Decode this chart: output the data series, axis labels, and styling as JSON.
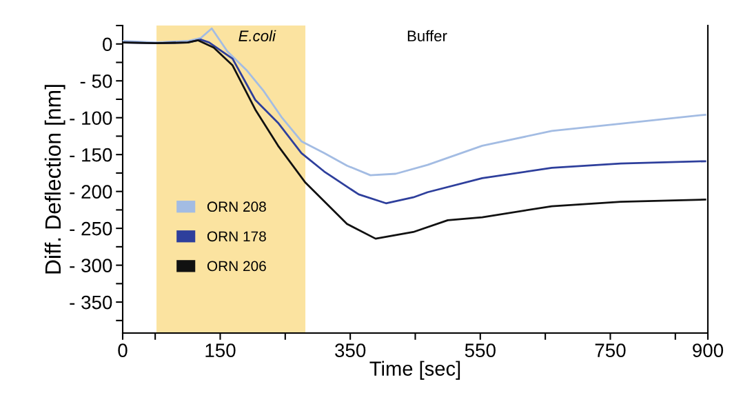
{
  "chart_data": {
    "type": "line",
    "xlabel": "Time [sec]",
    "ylabel": "Diff. Deflection [nm]",
    "xlim": [
      0,
      900
    ],
    "ylim": [
      -392,
      25
    ],
    "xticks": [
      0,
      {
        "value": 50,
        "label": null
      },
      150,
      {
        "value": 250,
        "label": null
      },
      350,
      {
        "value": 450,
        "label": null
      },
      550,
      {
        "value": 650,
        "label": null
      },
      750,
      {
        "value": 850,
        "label": null
      },
      900
    ],
    "yticks": [
      {
        "value": 25,
        "label": null
      },
      0,
      {
        "value": -25,
        "label": null
      },
      {
        "value": -50,
        "label": "- 50"
      },
      {
        "value": -75,
        "label": null
      },
      {
        "value": -100,
        "label": "- 100"
      },
      {
        "value": -125,
        "label": null
      },
      {
        "value": -150,
        "label": "- 150"
      },
      {
        "value": -175,
        "label": null
      },
      {
        "value": -200,
        "label": "- 200"
      },
      {
        "value": -225,
        "label": null
      },
      {
        "value": -250,
        "label": "- 250"
      },
      {
        "value": -275,
        "label": null
      },
      {
        "value": -300,
        "label": "- 300"
      },
      {
        "value": -325,
        "label": null
      },
      {
        "value": -350,
        "label": "- 350"
      },
      {
        "value": -375,
        "label": null
      }
    ],
    "grid": false,
    "legend": "bottom left",
    "marker": "none",
    "line_style": "solid",
    "bands": [
      {
        "axis": "x",
        "from": 52,
        "to": 281,
        "label": "E.coli",
        "color": "#fbe3a0"
      }
    ],
    "annotations": [
      "Buffer"
    ],
    "series": [
      {
        "name": "ORN 208",
        "color": "#a3bce3",
        "x": [
          0,
          50,
          100,
          120,
          137,
          161,
          190,
          217,
          245,
          275,
          310,
          345,
          381,
          420,
          469,
          553,
          660,
          766,
          896
        ],
        "values": [
          4,
          2,
          4,
          8,
          21,
          -10,
          -35,
          -64,
          -100,
          -132,
          -148,
          -165,
          -178,
          -176,
          -164,
          -138,
          -118,
          -108,
          -96
        ]
      },
      {
        "name": "ORN 178",
        "color": "#2e3f9c",
        "x": [
          0,
          50,
          100,
          120,
          133,
          169,
          204,
          239,
          275,
          310,
          363,
          405,
          447,
          469,
          553,
          660,
          766,
          896
        ],
        "values": [
          2,
          1,
          2,
          6,
          2,
          -20,
          -76,
          -107,
          -148,
          -173,
          -204,
          -216,
          -208,
          -201,
          -182,
          -168,
          -162,
          -159
        ]
      },
      {
        "name": "ORN 206",
        "color": "#111111",
        "x": [
          0,
          50,
          100,
          116,
          140,
          169,
          204,
          239,
          281,
          345,
          389,
          447,
          500,
          553,
          660,
          766,
          896
        ],
        "values": [
          2,
          1,
          2,
          5,
          -5,
          -29,
          -89,
          -138,
          -188,
          -244,
          -264,
          -255,
          -239,
          -235,
          -220,
          -214,
          -211
        ]
      }
    ]
  }
}
